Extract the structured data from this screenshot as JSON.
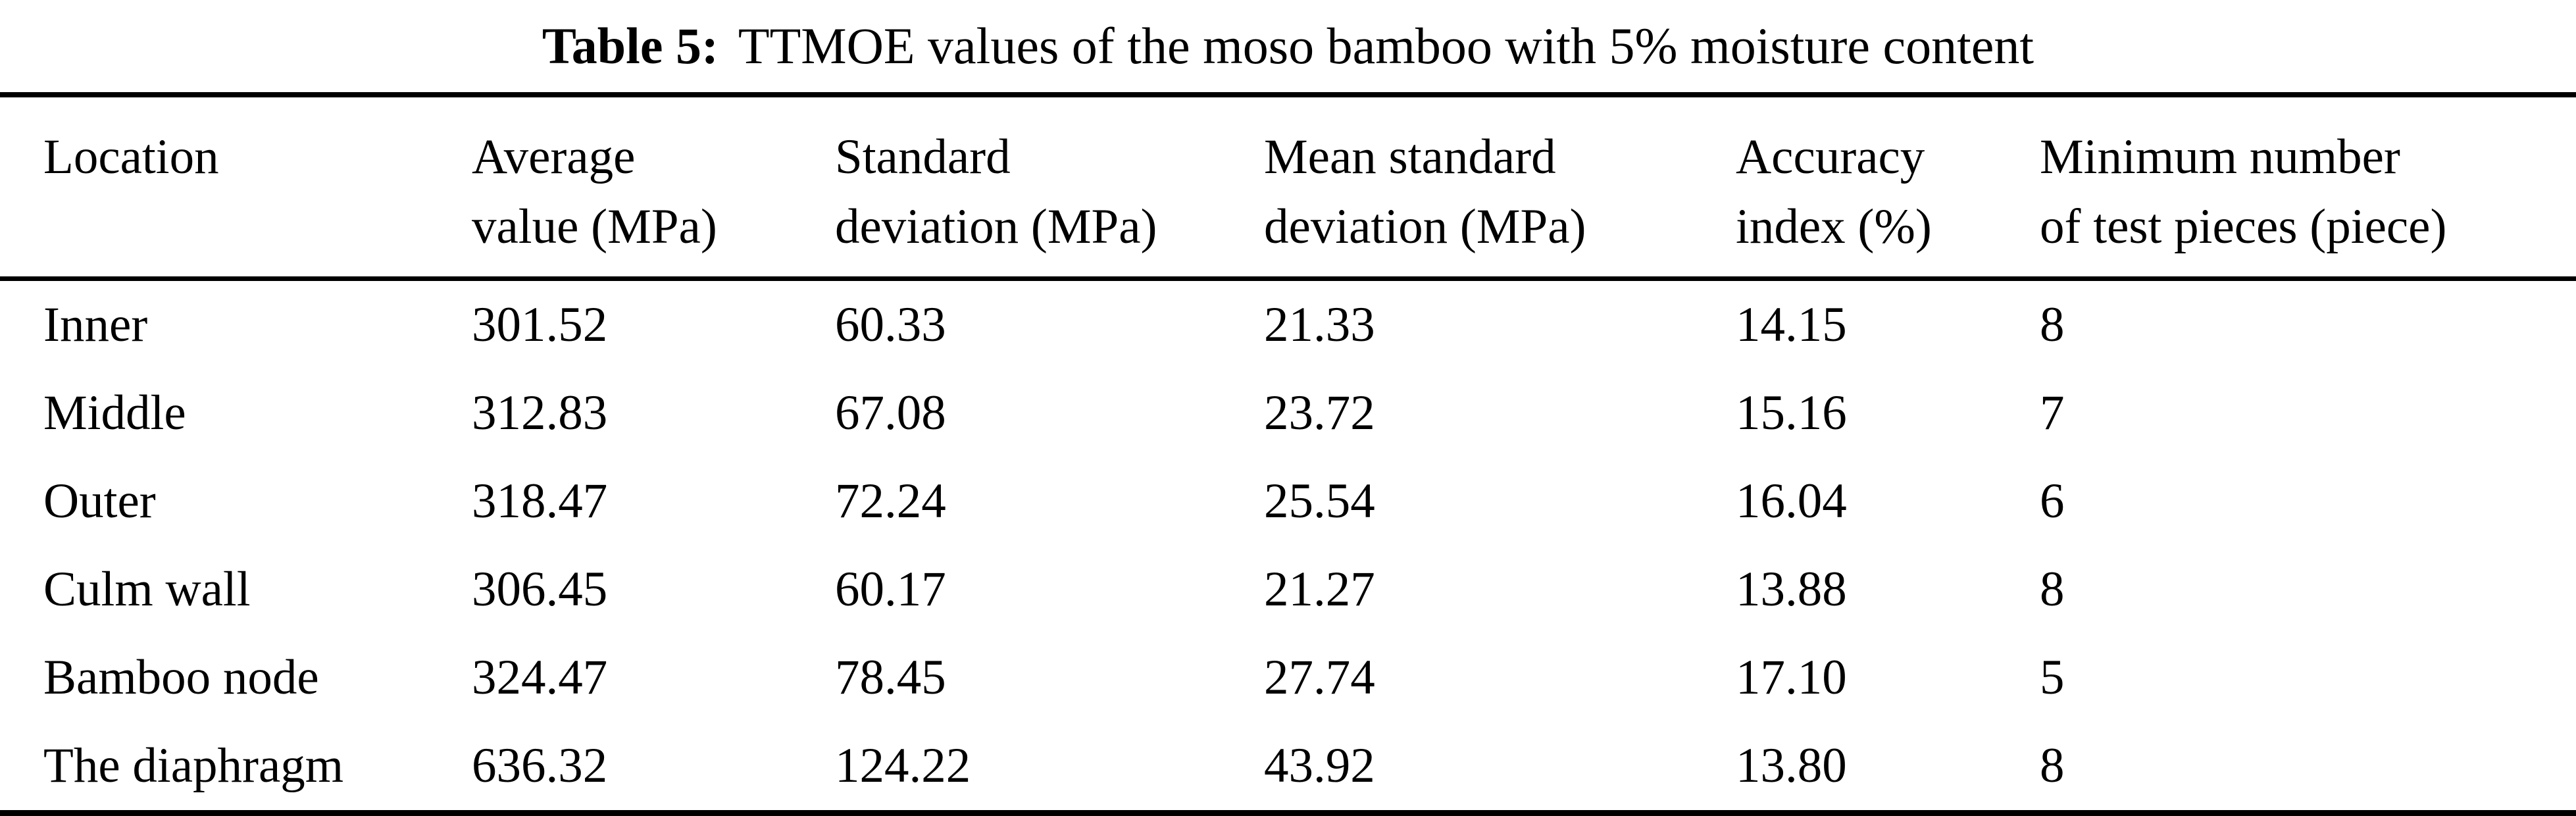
{
  "caption": {
    "label": "Table 5:",
    "text": "TTMOE values of the moso bamboo with 5% moisture content"
  },
  "columns": [
    {
      "line1": "Location",
      "line2": ""
    },
    {
      "line1": "Average",
      "line2": "value (MPa)"
    },
    {
      "line1": "Standard",
      "line2": "deviation (MPa)"
    },
    {
      "line1": "Mean standard",
      "line2": "deviation (MPa)"
    },
    {
      "line1": "Accuracy",
      "line2": "index (%)"
    },
    {
      "line1": "Minimum number",
      "line2": "of test pieces (piece)"
    }
  ],
  "rows": [
    [
      "Inner",
      "301.52",
      "60.33",
      "21.33",
      "14.15",
      "8"
    ],
    [
      "Middle",
      "312.83",
      "67.08",
      "23.72",
      "15.16",
      "7"
    ],
    [
      "Outer",
      "318.47",
      "72.24",
      "25.54",
      "16.04",
      "6"
    ],
    [
      "Culm wall",
      "306.45",
      "60.17",
      "21.27",
      "13.88",
      "8"
    ],
    [
      "Bamboo node",
      "324.47",
      "78.45",
      "27.74",
      "17.10",
      "5"
    ],
    [
      "The diaphragm",
      "636.32",
      "124.22",
      "43.92",
      "13.80",
      "8"
    ]
  ],
  "colors": {
    "background": "#ffffff",
    "text": "#000000",
    "rule": "#000000"
  }
}
